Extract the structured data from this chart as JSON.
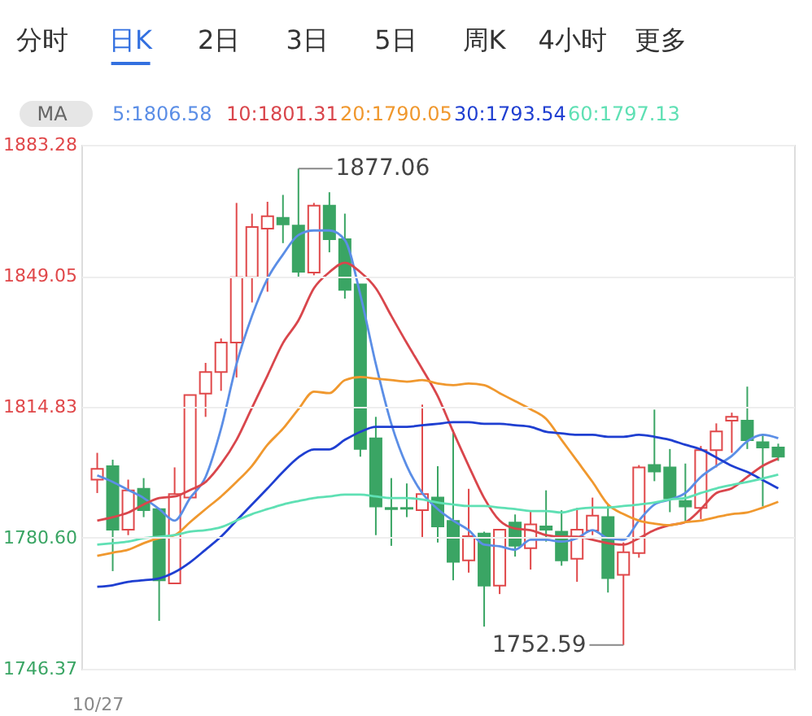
{
  "chart_data": {
    "type": "candlestick",
    "categories": [
      "10/27",
      null,
      null,
      null,
      null,
      null,
      null,
      null,
      null,
      null,
      null,
      null,
      null,
      null,
      null,
      null,
      null,
      null,
      null,
      null,
      null,
      null,
      null,
      null,
      null,
      null,
      null,
      null,
      null,
      null,
      null,
      null,
      null,
      null,
      null,
      null,
      null,
      null,
      null,
      null,
      null,
      null,
      null,
      null,
      null
    ],
    "ohlc": [
      [
        1795.8,
        1802.8,
        1792.3,
        1798.6
      ],
      [
        1799.3,
        1801.0,
        1771.9,
        1782.7
      ],
      [
        1782.7,
        1795.8,
        1781.3,
        1793.0
      ],
      [
        1793.4,
        1796.2,
        1786.0,
        1787.8
      ],
      [
        1788.1,
        1788.1,
        1758.9,
        1769.5
      ],
      [
        1768.7,
        1799.0,
        1768.7,
        1792.0
      ],
      [
        1791.1,
        1818.0,
        1791.1,
        1817.9
      ],
      [
        1818.3,
        1826.3,
        1812.2,
        1823.9
      ],
      [
        1823.9,
        1832.7,
        1819.0,
        1831.6
      ],
      [
        1831.6,
        1868.1,
        1822.5,
        1848.7
      ],
      [
        1848.7,
        1865.3,
        1842.1,
        1861.8
      ],
      [
        1861.4,
        1868.4,
        1844.9,
        1864.6
      ],
      [
        1864.2,
        1870.2,
        1857.6,
        1862.5
      ],
      [
        1862.2,
        1877.06,
        1848.7,
        1850.1
      ],
      [
        1849.9,
        1868.1,
        1849.2,
        1867.4
      ],
      [
        1867.4,
        1870.9,
        1855.2,
        1858.6
      ],
      [
        1858.6,
        1865.3,
        1843.1,
        1845.4
      ],
      [
        1846.8,
        1846.8,
        1801.8,
        1803.8
      ],
      [
        1806.6,
        1812.2,
        1781.3,
        1788.8
      ],
      [
        1788.4,
        1796.2,
        1778.5,
        1788.1
      ],
      [
        1788.4,
        1794.8,
        1786.0,
        1788.2
      ],
      [
        1787.8,
        1815.4,
        1780.4,
        1792.0
      ],
      [
        1791.1,
        1799.3,
        1779.4,
        1783.6
      ],
      [
        1785.0,
        1808.8,
        1769.5,
        1774.3
      ],
      [
        1774.7,
        1793.4,
        1771.5,
        1781.0
      ],
      [
        1781.7,
        1782.2,
        1757.4,
        1768.1
      ],
      [
        1768.1,
        1782.7,
        1765.9,
        1782.7
      ],
      [
        1784.6,
        1786.7,
        1775.7,
        1778.5
      ],
      [
        1777.9,
        1787.8,
        1772.3,
        1784.1
      ],
      [
        1783.6,
        1793.0,
        1779.6,
        1782.7
      ],
      [
        1782.2,
        1787.8,
        1773.3,
        1774.7
      ],
      [
        1775.1,
        1788.4,
        1769.1,
        1782.7
      ],
      [
        1782.5,
        1791.1,
        1781.3,
        1786.4
      ],
      [
        1786.0,
        1789.2,
        1766.3,
        1770.1
      ],
      [
        1770.9,
        1779.4,
        1752.59,
        1776.8
      ],
      [
        1776.6,
        1799.6,
        1775.4,
        1799.0
      ],
      [
        1799.6,
        1814.1,
        1795.4,
        1797.9
      ],
      [
        1799.0,
        1803.8,
        1787.3,
        1790.9
      ],
      [
        1790.2,
        1800.0,
        1785.0,
        1788.8
      ],
      [
        1788.4,
        1804.6,
        1785.5,
        1803.5
      ],
      [
        1803.5,
        1810.5,
        1799.0,
        1808.4
      ],
      [
        1811.2,
        1813.3,
        1802.8,
        1812.2
      ],
      [
        1811.2,
        1820.1,
        1803.8,
        1806.1
      ],
      [
        1805.6,
        1807.8,
        1788.8,
        1804.2
      ],
      [
        1804.2,
        1805.2,
        1800.7,
        1801.8
      ]
    ],
    "colors": [
      "#e0484a",
      "#3aa564",
      "#e0484a",
      "#3aa564",
      "#3aa564",
      "#e0484a",
      "#e0484a",
      "#e0484a",
      "#e0484a",
      "#e0484a",
      "#e0484a",
      "#e0484a",
      "#3aa564",
      "#3aa564",
      "#e0484a",
      "#3aa564",
      "#3aa564",
      "#3aa564",
      "#3aa564",
      "#3aa564",
      "#3aa564",
      "#e0484a",
      "#3aa564",
      "#3aa564",
      "#e0484a",
      "#3aa564",
      "#e0484a",
      "#3aa564",
      "#e0484a",
      "#3aa564",
      "#3aa564",
      "#e0484a",
      "#e0484a",
      "#3aa564",
      "#e0484a",
      "#e0484a",
      "#3aa564",
      "#3aa564",
      "#3aa564",
      "#e0484a",
      "#e0484a",
      "#e0484a",
      "#3aa564",
      "#3aa564",
      "#3aa564"
    ],
    "series": [
      {
        "name": "5:1806.58",
        "type": "line",
        "color": "#5b8ee6",
        "values": [
          1796.9,
          1795.2,
          1793.1,
          1791.0,
          1788.1,
          1785.1,
          1791.0,
          1796.5,
          1809.1,
          1826.0,
          1838.6,
          1848.3,
          1854.6,
          1859.7,
          1860.9,
          1860.9,
          1858.4,
          1844.1,
          1826.0,
          1810.4,
          1799.4,
          1792.3,
          1788.1,
          1785.1,
          1782.6,
          1778.8,
          1778.4,
          1777.5,
          1780.1,
          1780.1,
          1779.6,
          1780.5,
          1782.6,
          1780.5,
          1780.1,
          1785.1,
          1789.3,
          1790.6,
          1792.3,
          1796.5,
          1799.4,
          1802.0,
          1805.8,
          1807.5,
          1806.6
        ]
      },
      {
        "name": "10:1801.31",
        "type": "line",
        "color": "#d9464c",
        "values": [
          1785.1,
          1786.0,
          1787.2,
          1789.3,
          1791.0,
          1791.4,
          1793.1,
          1795.2,
          1799.9,
          1806.2,
          1814.6,
          1823.0,
          1831.5,
          1837.4,
          1845.8,
          1850.0,
          1852.5,
          1850.0,
          1845.8,
          1838.6,
          1831.5,
          1824.7,
          1817.6,
          1808.3,
          1799.4,
          1791.0,
          1785.1,
          1783.0,
          1782.6,
          1781.3,
          1780.9,
          1780.9,
          1780.1,
          1779.2,
          1778.8,
          1780.5,
          1782.6,
          1783.9,
          1784.7,
          1788.1,
          1792.3,
          1793.5,
          1796.5,
          1799.4,
          1801.3
        ]
      },
      {
        "name": "20:1790.05",
        "type": "line",
        "color": "#f0982e",
        "values": [
          1775.9,
          1776.7,
          1777.5,
          1779.2,
          1780.5,
          1781.3,
          1784.7,
          1788.1,
          1791.4,
          1795.2,
          1799.4,
          1804.9,
          1809.1,
          1814.2,
          1818.8,
          1818.4,
          1821.8,
          1822.6,
          1822.2,
          1821.8,
          1821.4,
          1821.8,
          1820.9,
          1820.5,
          1820.9,
          1820.5,
          1818.4,
          1816.3,
          1814.2,
          1811.7,
          1806.2,
          1800.7,
          1795.2,
          1789.3,
          1786.8,
          1785.1,
          1784.3,
          1783.9,
          1784.7,
          1785.1,
          1786.0,
          1786.8,
          1787.2,
          1788.5,
          1790.0
        ]
      },
      {
        "name": "30:1793.54",
        "type": "line",
        "color": "#1f3fd1",
        "values": [
          1767.8,
          1768.2,
          1769.1,
          1769.5,
          1770.0,
          1771.6,
          1774.2,
          1777.5,
          1780.9,
          1785.1,
          1789.3,
          1793.5,
          1797.8,
          1801.6,
          1803.7,
          1803.7,
          1806.2,
          1808.3,
          1809.6,
          1809.6,
          1809.6,
          1810.0,
          1810.4,
          1810.8,
          1810.8,
          1810.4,
          1810.4,
          1810.0,
          1809.6,
          1808.3,
          1807.9,
          1807.5,
          1807.5,
          1807.0,
          1807.0,
          1807.5,
          1807.0,
          1806.2,
          1804.9,
          1803.7,
          1801.6,
          1799.4,
          1797.8,
          1795.7,
          1793.5
        ]
      },
      {
        "name": "60:1797.13",
        "type": "line",
        "color": "#5fe0b4",
        "values": [
          1778.8,
          1779.2,
          1779.6,
          1780.5,
          1780.9,
          1781.3,
          1782.2,
          1782.6,
          1783.4,
          1785.1,
          1786.8,
          1788.1,
          1789.3,
          1790.2,
          1791.0,
          1791.4,
          1791.9,
          1791.9,
          1791.4,
          1791.0,
          1791.0,
          1790.6,
          1789.8,
          1789.3,
          1788.9,
          1788.9,
          1788.5,
          1788.1,
          1787.6,
          1787.6,
          1787.2,
          1788.1,
          1788.5,
          1788.5,
          1788.9,
          1789.3,
          1789.8,
          1790.6,
          1791.0,
          1792.3,
          1793.5,
          1794.4,
          1795.2,
          1796.1,
          1797.1
        ]
      }
    ],
    "legend_title": "MA",
    "legend": "top",
    "ylim": [
      1746.37,
      1883.28
    ],
    "yticks": [
      1746.37,
      {
        "value": 1780.6,
        "label": "1780.60"
      },
      1814.83,
      1849.05,
      1883.28
    ],
    "grid": "y",
    "annotations": [
      "分时",
      "日K",
      "2日",
      "3日",
      "5日",
      "周K",
      "4小时",
      "更多",
      "1877.06",
      "1752.59"
    ]
  }
}
